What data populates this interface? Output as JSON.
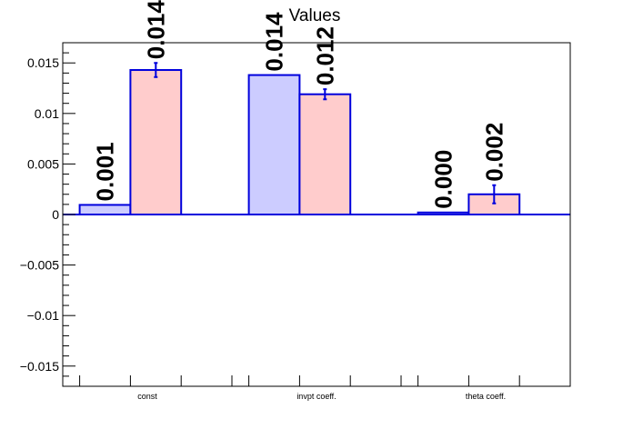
{
  "chart_data": {
    "type": "bar",
    "title": "Values",
    "categories": [
      "const",
      "invpt coeff.",
      "theta coeff."
    ],
    "ylim": [
      -0.017,
      0.017
    ],
    "yticks": [
      -0.015,
      -0.01,
      -0.005,
      0,
      0.005,
      0.01,
      0.015
    ],
    "ytick_labels": [
      "−0.015",
      "−0.01",
      "−0.005",
      "0",
      "0.005",
      "0.01",
      "0.015"
    ],
    "grid": false,
    "series": [
      {
        "color": "#ccccff",
        "edge_color": "#0000dd",
        "values": [
          0.00095,
          0.0138,
          0.0002
        ],
        "errors": [
          0,
          0,
          0
        ],
        "labels": [
          "0.001",
          "0.014",
          "0.000"
        ]
      },
      {
        "color": "#ffcccc",
        "edge_color": "#0000dd",
        "values": [
          0.0143,
          0.0119,
          0.002
        ],
        "errors": [
          0.0007,
          0.0005,
          0.0009
        ],
        "labels": [
          "0.014",
          "0.012",
          "0.002"
        ]
      }
    ]
  }
}
